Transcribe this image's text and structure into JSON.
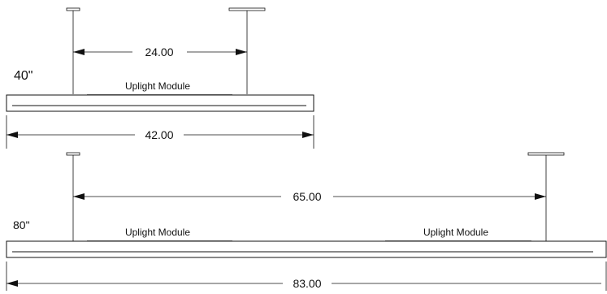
{
  "fixtures": [
    {
      "size_label": "40\"",
      "spacing_label": "24.00",
      "length_label": "42.00",
      "modules": [
        "Uplight Module"
      ]
    },
    {
      "size_label": "80\"",
      "spacing_label": "65.00",
      "length_label": "83.00",
      "modules": [
        "Uplight Module",
        "Uplight Module"
      ]
    }
  ]
}
